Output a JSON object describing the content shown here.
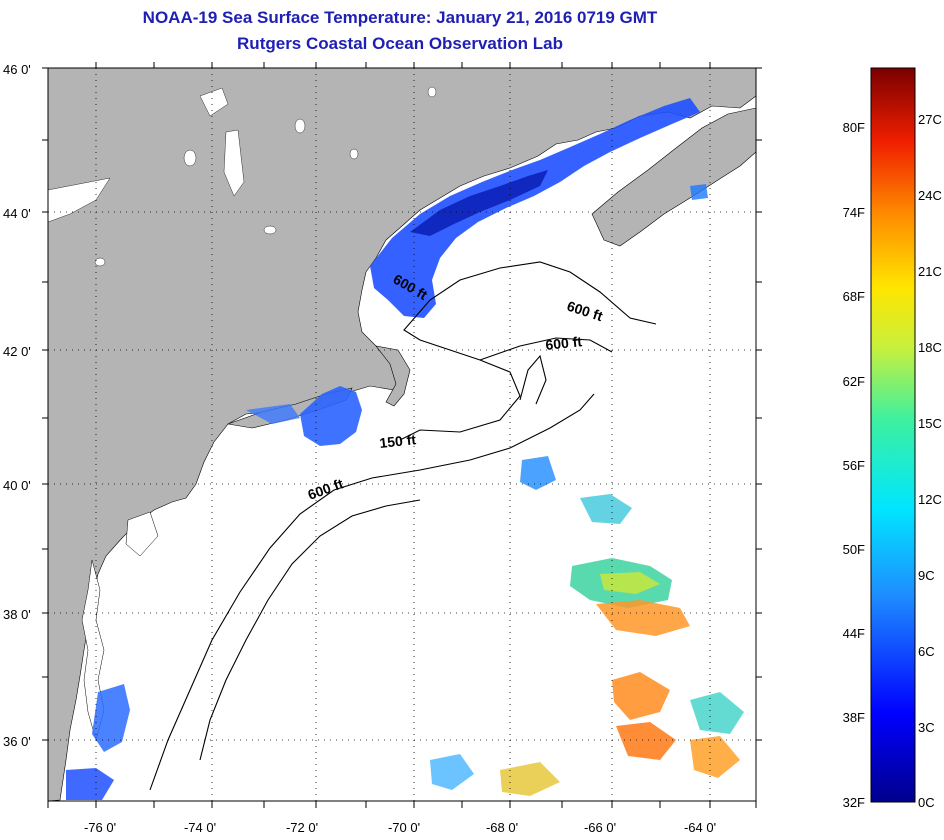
{
  "header": {
    "title": "NOAA-19 Sea Surface Temperature:  January 21, 2016 0719 GMT",
    "subtitle": "Rutgers Coastal Ocean Observation Lab"
  },
  "map": {
    "lat_labels": [
      "46 0'",
      "44 0'",
      "42 0'",
      "40 0'",
      "38 0'",
      "36 0'"
    ],
    "lon_labels": [
      "-76 0'",
      "-74 0'",
      "-72 0'",
      "-70 0'",
      "-68 0'",
      "-66 0'",
      "-64 0'"
    ],
    "contour_labels": [
      "600 ft",
      "600 ft",
      "600 ft",
      "150 ft",
      "600 ft"
    ],
    "colors": {
      "land": "#b4b4b4",
      "ocean": "#ffffff",
      "cold_water": "#1e50ff",
      "warm_water": "#ff8c1e"
    }
  },
  "colorbar": {
    "fahrenheit": [
      "80F",
      "74F",
      "68F",
      "62F",
      "56F",
      "50F",
      "44F",
      "38F",
      "32F"
    ],
    "celsius": [
      "27C",
      "24C",
      "21C",
      "18C",
      "15C",
      "12C",
      "9C",
      "6C",
      "3C",
      "0C"
    ]
  }
}
